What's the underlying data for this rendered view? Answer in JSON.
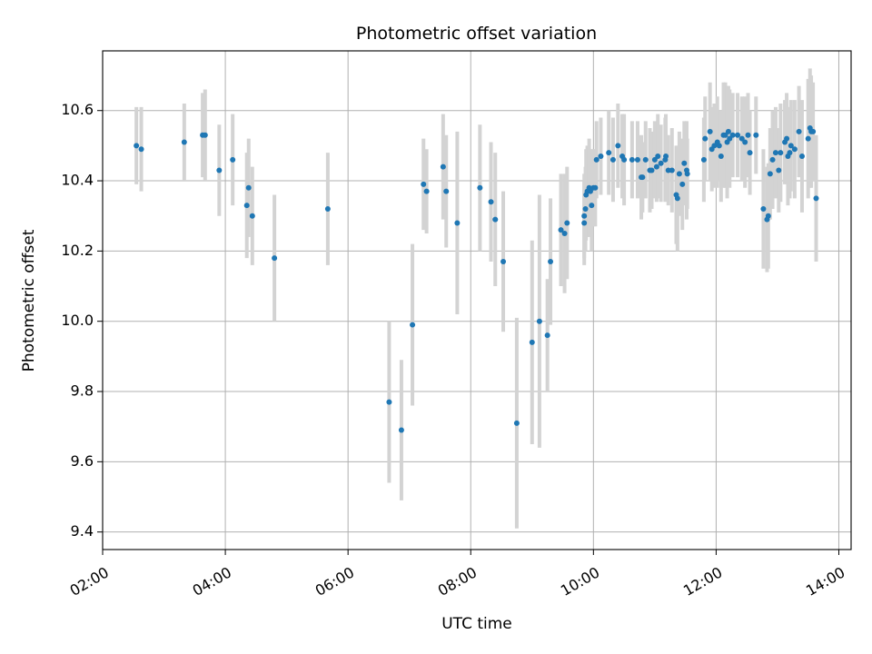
{
  "chart_data": {
    "type": "scatter",
    "title": "Photometric offset variation",
    "xlabel": "UTC time",
    "ylabel": "Photometric offset",
    "x_unit": "hours UTC",
    "xlim": [
      2.0,
      14.2
    ],
    "ylim": [
      9.35,
      10.77
    ],
    "x_ticks": [
      2,
      4,
      6,
      8,
      10,
      12,
      14
    ],
    "x_tick_labels": [
      "02:00",
      "04:00",
      "06:00",
      "08:00",
      "10:00",
      "12:00",
      "14:00"
    ],
    "y_ticks": [
      9.4,
      9.6,
      9.8,
      10.0,
      10.2,
      10.4,
      10.6
    ],
    "y_tick_labels": [
      "9.4",
      "9.6",
      "9.8",
      "10.0",
      "10.2",
      "10.4",
      "10.6"
    ],
    "grid": true,
    "colors": {
      "marker": "#1f77b4",
      "errorbar": "#d3d3d3",
      "grid": "#b0b0b0"
    },
    "series": [
      {
        "x": [
          2.55,
          2.63,
          3.33,
          3.63,
          3.67,
          3.9,
          4.12,
          4.35,
          4.38,
          4.44,
          4.8,
          5.67,
          6.67,
          6.87,
          7.05,
          7.23,
          7.28,
          7.55,
          7.6,
          7.78,
          8.15,
          8.33,
          8.4,
          8.53,
          8.75,
          9.0,
          9.12,
          9.25,
          9.3,
          9.47,
          9.53,
          9.57,
          9.85,
          9.85,
          9.87,
          9.88,
          9.9,
          9.93,
          9.95,
          9.97,
          10.0,
          10.03,
          10.05,
          10.12,
          10.25,
          10.32,
          10.4,
          10.47,
          10.5,
          10.63,
          10.72,
          10.78,
          10.8,
          10.85,
          10.92,
          10.95,
          11.0,
          11.03,
          11.05,
          11.1,
          11.17,
          11.18,
          11.22,
          11.28,
          11.35,
          11.37,
          11.4,
          11.45,
          11.48,
          11.52,
          11.53,
          11.8,
          11.82,
          11.9,
          11.93,
          11.97,
          12.02,
          12.05,
          12.08,
          12.12,
          12.15,
          12.18,
          12.2,
          12.22,
          12.27,
          12.35,
          12.42,
          12.47,
          12.52,
          12.55,
          12.65,
          12.77,
          12.83,
          12.85,
          12.88,
          12.92,
          12.97,
          13.02,
          13.05,
          13.12,
          13.15,
          13.17,
          13.2,
          13.22,
          13.28,
          13.35,
          13.4,
          13.5,
          13.53,
          13.55,
          13.58,
          13.63
        ],
        "y": [
          10.5,
          10.49,
          10.51,
          10.53,
          10.53,
          10.43,
          10.46,
          10.33,
          10.38,
          10.3,
          10.18,
          10.32,
          9.77,
          9.69,
          9.99,
          10.39,
          10.37,
          10.44,
          10.37,
          10.28,
          10.38,
          10.34,
          10.29,
          10.17,
          9.71,
          9.94,
          10.0,
          9.96,
          10.17,
          10.26,
          10.25,
          10.28,
          10.28,
          10.3,
          10.32,
          10.36,
          10.37,
          10.38,
          10.37,
          10.33,
          10.38,
          10.38,
          10.46,
          10.47,
          10.48,
          10.46,
          10.5,
          10.47,
          10.46,
          10.46,
          10.46,
          10.41,
          10.41,
          10.46,
          10.43,
          10.43,
          10.46,
          10.44,
          10.47,
          10.45,
          10.46,
          10.47,
          10.43,
          10.43,
          10.36,
          10.35,
          10.42,
          10.39,
          10.45,
          10.43,
          10.42,
          10.46,
          10.52,
          10.54,
          10.49,
          10.5,
          10.51,
          10.5,
          10.47,
          10.53,
          10.53,
          10.51,
          10.54,
          10.52,
          10.53,
          10.53,
          10.52,
          10.51,
          10.53,
          10.48,
          10.53,
          10.32,
          10.29,
          10.3,
          10.42,
          10.46,
          10.48,
          10.43,
          10.48,
          10.51,
          10.52,
          10.47,
          10.48,
          10.5,
          10.49,
          10.54,
          10.47,
          10.52,
          10.55,
          10.54,
          10.54,
          10.35
        ],
        "err": [
          0.11,
          0.12,
          0.11,
          0.12,
          0.13,
          0.13,
          0.13,
          0.15,
          0.14,
          0.14,
          0.18,
          0.16,
          0.23,
          0.2,
          0.23,
          0.13,
          0.12,
          0.15,
          0.16,
          0.26,
          0.18,
          0.17,
          0.19,
          0.2,
          0.3,
          0.29,
          0.36,
          0.16,
          0.18,
          0.16,
          0.17,
          0.16,
          0.12,
          0.12,
          0.12,
          0.13,
          0.13,
          0.14,
          0.12,
          0.13,
          0.11,
          0.11,
          0.11,
          0.11,
          0.12,
          0.12,
          0.12,
          0.12,
          0.13,
          0.11,
          0.11,
          0.12,
          0.1,
          0.11,
          0.12,
          0.11,
          0.11,
          0.1,
          0.12,
          0.11,
          0.12,
          0.12,
          0.1,
          0.12,
          0.14,
          0.15,
          0.12,
          0.13,
          0.12,
          0.14,
          0.1,
          0.12,
          0.12,
          0.14,
          0.12,
          0.12,
          0.13,
          0.1,
          0.13,
          0.15,
          0.15,
          0.16,
          0.13,
          0.14,
          0.12,
          0.12,
          0.12,
          0.13,
          0.12,
          0.12,
          0.11,
          0.17,
          0.15,
          0.15,
          0.13,
          0.14,
          0.13,
          0.12,
          0.14,
          0.12,
          0.13,
          0.14,
          0.13,
          0.13,
          0.14,
          0.13,
          0.16,
          0.17,
          0.17,
          0.16,
          0.14,
          0.18
        ]
      }
    ]
  }
}
